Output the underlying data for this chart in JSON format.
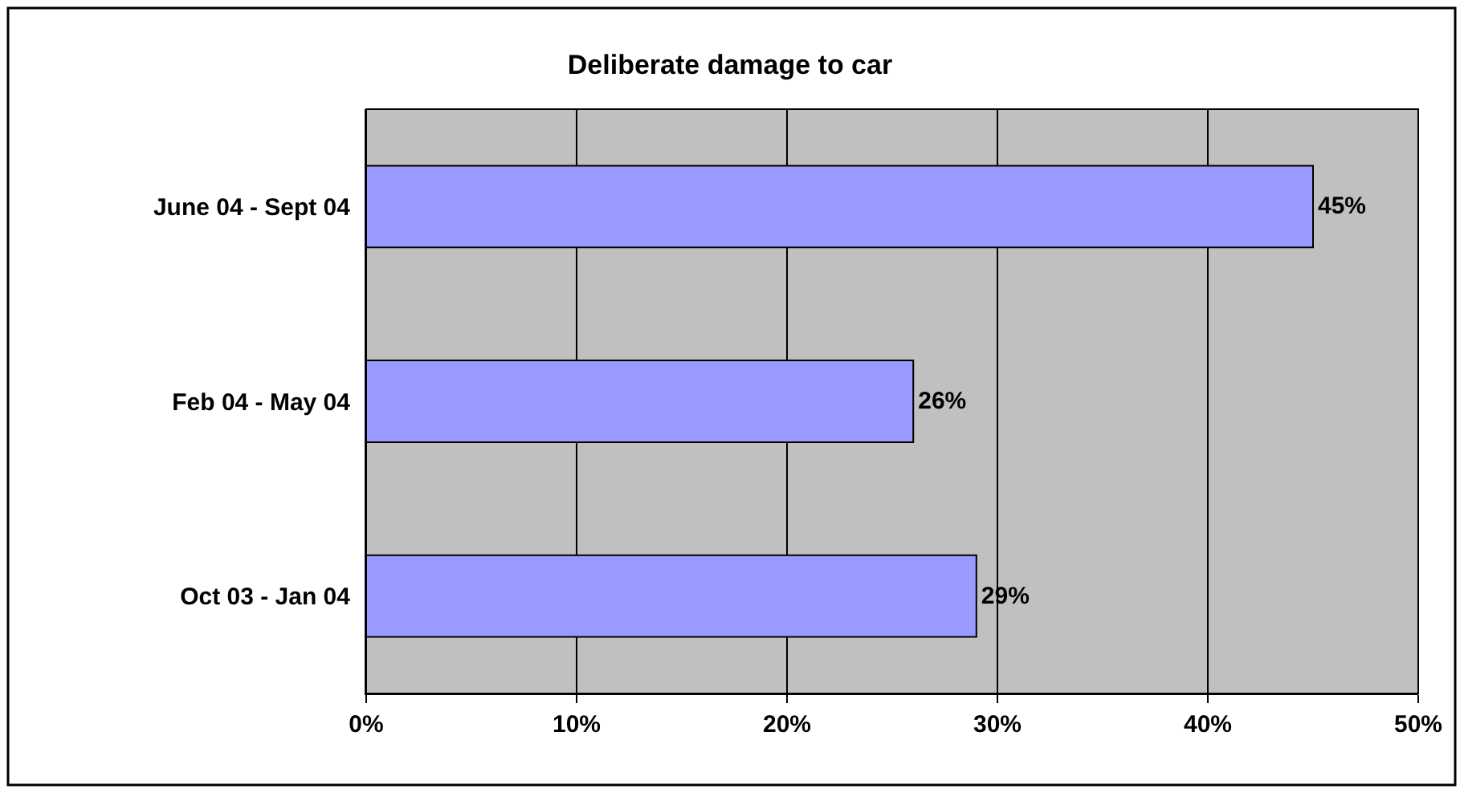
{
  "chart_data": {
    "type": "bar",
    "orientation": "horizontal",
    "title": "Deliberate damage to car",
    "categories": [
      "June 04 - Sept 04",
      "Feb 04 - May 04",
      "Oct 03 - Jan 04"
    ],
    "values": [
      45,
      26,
      29
    ],
    "color": "#9999ff",
    "value_labels": [
      "45%",
      "26%",
      "29%"
    ],
    "xlim": [
      0,
      50
    ],
    "xticks": [
      {
        "value": 0,
        "label": "0%"
      },
      {
        "value": 10,
        "label": "10%"
      },
      {
        "value": 20,
        "label": "20%"
      },
      {
        "value": 30,
        "label": "30%"
      },
      {
        "value": 40,
        "label": "40%"
      },
      {
        "value": 50,
        "label": "50%"
      }
    ],
    "grid": "x",
    "legend": false
  }
}
